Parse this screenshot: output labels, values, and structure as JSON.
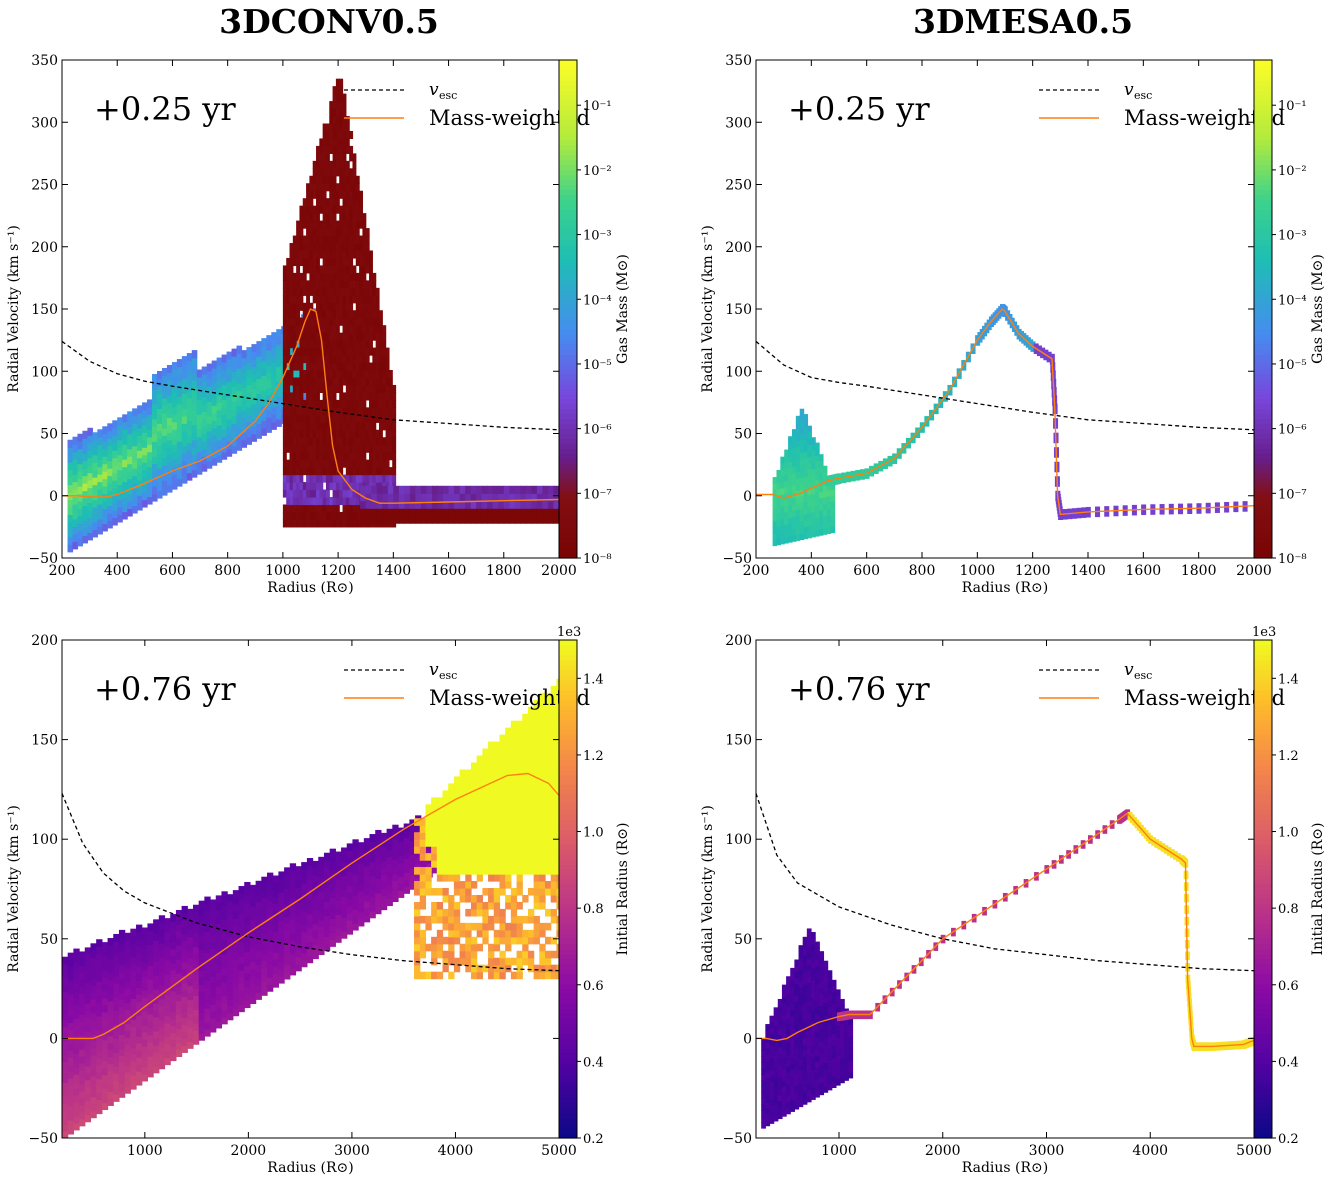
{
  "figure": {
    "column_titles": [
      "3DCONV0.5",
      "3DMESA0.5"
    ]
  },
  "chart_data": [
    {
      "type": "heatmap",
      "panel": "top-left",
      "annotation": "+0.25 yr",
      "xlabel": "Radius (R⊙)",
      "ylabel": "Radial Velocity (km s⁻¹)",
      "xlim": [
        200,
        2000
      ],
      "ylim": [
        -50,
        350
      ],
      "xticks": [
        200,
        400,
        600,
        800,
        1000,
        1200,
        1400,
        1600,
        1800,
        2000
      ],
      "yticks": [
        -50,
        0,
        50,
        100,
        150,
        200,
        250,
        300,
        350
      ],
      "legend": {
        "position": "top-right",
        "entries": [
          "v_esc",
          "Mass-weighted"
        ]
      },
      "colorbar": {
        "label": "Gas Mass (M⊙)",
        "scale": "log",
        "range": [
          1e-08,
          0.5
        ],
        "ticks": [
          "10⁻⁸",
          "10⁻⁷",
          "10⁻⁶",
          "10⁻⁵",
          "10⁻⁴",
          "10⁻³",
          "10⁻²",
          "10⁻¹"
        ],
        "cmap": "turbo-like"
      },
      "v_esc": {
        "x": [
          200,
          300,
          400,
          500,
          600,
          800,
          1000,
          1200,
          1400,
          1600,
          1800,
          2000
        ],
        "y": [
          124,
          108,
          98,
          92,
          88,
          81,
          74,
          67,
          61,
          58,
          55,
          53
        ]
      },
      "mass_weighted": {
        "x": [
          200,
          260,
          300,
          360,
          400,
          500,
          600,
          700,
          800,
          900,
          950,
          1000,
          1050,
          1080,
          1100,
          1120,
          1140,
          1160,
          1180,
          1200,
          1250,
          1300,
          1350,
          1400,
          1600,
          1800,
          2000
        ],
        "y": [
          0,
          0,
          -1,
          -1,
          1,
          10,
          20,
          28,
          40,
          60,
          75,
          95,
          120,
          140,
          150,
          148,
          125,
          80,
          40,
          20,
          5,
          -2,
          -6,
          -6,
          -5,
          -4,
          -3
        ]
      }
    },
    {
      "type": "heatmap",
      "panel": "top-right",
      "annotation": "+0.25 yr",
      "xlabel": "Radius (R⊙)",
      "ylabel": "Radial Velocity (km s⁻¹)",
      "xlim": [
        200,
        2000
      ],
      "ylim": [
        -50,
        350
      ],
      "xticks": [
        200,
        400,
        600,
        800,
        1000,
        1200,
        1400,
        1600,
        1800,
        2000
      ],
      "yticks": [
        -50,
        0,
        50,
        100,
        150,
        200,
        250,
        300,
        350
      ],
      "legend": {
        "position": "top-right",
        "entries": [
          "v_esc",
          "Mass-weighted"
        ]
      },
      "colorbar": {
        "label": "Gas Mass (M⊙)",
        "scale": "log",
        "range": [
          1e-08,
          0.5
        ],
        "ticks": [
          "10⁻⁸",
          "10⁻⁷",
          "10⁻⁶",
          "10⁻⁵",
          "10⁻⁴",
          "10⁻³",
          "10⁻²",
          "10⁻¹"
        ],
        "cmap": "turbo-like"
      },
      "v_esc": {
        "x": [
          200,
          300,
          400,
          500,
          600,
          800,
          1000,
          1200,
          1400,
          1600,
          1800,
          2000
        ],
        "y": [
          124,
          105,
          95,
          91,
          88,
          81,
          74,
          67,
          61,
          58,
          55,
          53
        ]
      },
      "mass_weighted": {
        "x": [
          200,
          260,
          300,
          360,
          400,
          460,
          500,
          600,
          700,
          800,
          900,
          1000,
          1050,
          1090,
          1100,
          1150,
          1200,
          1270,
          1280,
          1290,
          1300,
          1400,
          1600,
          1800,
          2000
        ],
        "y": [
          1,
          1,
          -2,
          2,
          6,
          12,
          14,
          18,
          30,
          55,
          85,
          125,
          140,
          150,
          148,
          130,
          120,
          110,
          70,
          0,
          -15,
          -13,
          -11,
          -10,
          -8
        ]
      }
    },
    {
      "type": "heatmap",
      "panel": "bottom-left",
      "annotation": "+0.76 yr",
      "xlabel": "Radius (R⊙)",
      "ylabel": "Radial Velocity (km s⁻¹)",
      "xlim": [
        200,
        5000
      ],
      "ylim": [
        -50,
        200
      ],
      "xticks": [
        1000,
        2000,
        3000,
        4000,
        5000
      ],
      "yticks": [
        -50,
        0,
        50,
        100,
        150,
        200
      ],
      "legend": {
        "position": "top-right",
        "entries": [
          "v_esc",
          "Mass-weighted"
        ]
      },
      "colorbar": {
        "label": "Initial Radius (R⊙)",
        "scale": "linear",
        "range": [
          0.2,
          1.5
        ],
        "ticks": [
          "0.2",
          "0.4",
          "0.6",
          "0.8",
          "1.0",
          "1.2",
          "1.4"
        ],
        "offset": "1e3",
        "cmap": "plasma"
      },
      "v_esc": {
        "x": [
          200,
          400,
          600,
          800,
          1000,
          1500,
          2000,
          2500,
          3000,
          3500,
          4000,
          4500,
          5000
        ],
        "y": [
          123,
          98,
          83,
          74,
          68,
          58,
          51,
          46,
          42,
          39,
          37,
          35,
          34
        ]
      },
      "mass_weighted": {
        "x": [
          200,
          300,
          500,
          600,
          800,
          1000,
          1500,
          2000,
          2500,
          3000,
          3500,
          4000,
          4500,
          4700,
          4900,
          5000
        ],
        "y": [
          0,
          0,
          0,
          2,
          8,
          16,
          35,
          53,
          70,
          88,
          105,
          120,
          132,
          133,
          128,
          122
        ]
      }
    },
    {
      "type": "heatmap",
      "panel": "bottom-right",
      "annotation": "+0.76 yr",
      "xlabel": "Radius (R⊙)",
      "ylabel": "Radial Velocity (km s⁻¹)",
      "xlim": [
        200,
        5000
      ],
      "ylim": [
        -50,
        200
      ],
      "xticks": [
        1000,
        2000,
        3000,
        4000,
        5000
      ],
      "yticks": [
        -50,
        0,
        50,
        100,
        150,
        200
      ],
      "legend": {
        "position": "top-right",
        "entries": [
          "v_esc",
          "Mass-weighted"
        ]
      },
      "colorbar": {
        "label": "Initial Radius (R⊙)",
        "scale": "linear",
        "range": [
          0.2,
          1.5
        ],
        "ticks": [
          "0.2",
          "0.4",
          "0.6",
          "0.8",
          "1.0",
          "1.2",
          "1.4"
        ],
        "offset": "1e3",
        "cmap": "plasma"
      },
      "v_esc": {
        "x": [
          200,
          400,
          600,
          800,
          1000,
          1500,
          2000,
          2500,
          3000,
          3500,
          4000,
          4500,
          5000
        ],
        "y": [
          123,
          92,
          78,
          72,
          66,
          57,
          50,
          45,
          42,
          39,
          37,
          35,
          34
        ]
      },
      "mass_weighted": {
        "x": [
          200,
          300,
          400,
          500,
          600,
          800,
          1000,
          1100,
          1300,
          2000,
          3000,
          3700,
          3780,
          4000,
          4300,
          4340,
          4360,
          4400,
          4420,
          4600,
          4900,
          5000
        ],
        "y": [
          0,
          0,
          -1,
          0,
          3,
          8,
          11,
          12,
          12,
          50,
          85,
          110,
          113,
          100,
          90,
          88,
          30,
          0,
          -4,
          -4,
          -3,
          -1
        ]
      }
    }
  ]
}
